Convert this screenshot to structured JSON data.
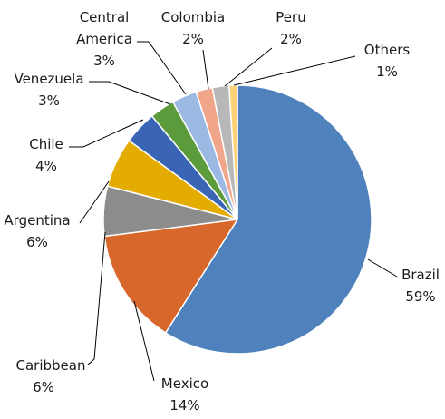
{
  "chart_data": {
    "type": "pie",
    "title": "",
    "start_angle_deg": 0,
    "direction": "clockwise",
    "slices": [
      {
        "name": "Brazil",
        "value": 59,
        "label": "Brazil",
        "pct": "59%",
        "color": "#4f81bd"
      },
      {
        "name": "Mexico",
        "value": 14,
        "label": "Mexico",
        "pct": "14%",
        "color": "#d7672b"
      },
      {
        "name": "Caribbean",
        "value": 6,
        "label": "Caribbean",
        "pct": "6%",
        "color": "#8c8c8c"
      },
      {
        "name": "Argentina",
        "value": 6,
        "label": "Argentina",
        "pct": "6%",
        "color": "#e4ac00"
      },
      {
        "name": "Chile",
        "value": 4,
        "label": "Chile",
        "pct": "4%",
        "color": "#3a65b4"
      },
      {
        "name": "Venezuela",
        "value": 3,
        "label": "Venezuela",
        "pct": "3%",
        "color": "#5c9b3c"
      },
      {
        "name": "Central America",
        "value": 3,
        "label": "Central America",
        "pct": "3%",
        "color": "#9bb9e2"
      },
      {
        "name": "Colombia",
        "value": 2,
        "label": "Colombia",
        "pct": "2%",
        "color": "#f1a58a"
      },
      {
        "name": "Peru",
        "value": 2,
        "label": "Peru",
        "pct": "2%",
        "color": "#b8b8b8"
      },
      {
        "name": "Others",
        "value": 1,
        "label": "Others",
        "pct": "1%",
        "color": "#fdd277"
      }
    ]
  }
}
